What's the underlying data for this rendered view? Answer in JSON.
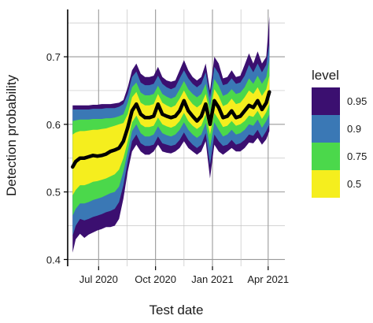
{
  "chart_data": {
    "type": "area",
    "xlabel": "Test date",
    "ylabel": "Detection probability",
    "xlim": [
      "2020-05-12",
      "2021-04-28"
    ],
    "ylim": [
      0.39,
      0.77
    ],
    "x_ticks": [
      {
        "date": "2020-07-01",
        "label": "Jul 2020"
      },
      {
        "date": "2020-10-01",
        "label": "Oct 2020"
      },
      {
        "date": "2021-01-01",
        "label": "Jan 2021"
      },
      {
        "date": "2021-04-01",
        "label": "Apr 2021"
      }
    ],
    "y_ticks": [
      0.4,
      0.5,
      0.6,
      0.7
    ],
    "x_minor_gridlines": [
      "2020-08-16",
      "2020-11-16",
      "2021-02-16"
    ],
    "y_minor_gridlines": [
      0.45,
      0.55,
      0.65,
      0.75
    ],
    "grid": true,
    "legend": {
      "title": "level",
      "position": "right",
      "items": [
        {
          "label": "0.95",
          "color": "#3b0f70"
        },
        {
          "label": "0.9",
          "color": "#3a78b5"
        },
        {
          "label": "0.75",
          "color": "#4bd84b"
        },
        {
          "label": "0.5",
          "color": "#f5ee1e"
        }
      ]
    },
    "median_color": "#000000",
    "x": [
      "2020-05-20",
      "2020-05-25",
      "2020-06-01",
      "2020-06-08",
      "2020-06-15",
      "2020-06-22",
      "2020-06-29",
      "2020-07-06",
      "2020-07-13",
      "2020-07-20",
      "2020-07-27",
      "2020-08-03",
      "2020-08-10",
      "2020-08-17",
      "2020-08-24",
      "2020-08-31",
      "2020-09-07",
      "2020-09-14",
      "2020-09-21",
      "2020-09-28",
      "2020-10-05",
      "2020-10-12",
      "2020-10-19",
      "2020-10-26",
      "2020-11-02",
      "2020-11-09",
      "2020-11-16",
      "2020-11-23",
      "2020-11-30",
      "2020-12-07",
      "2020-12-14",
      "2020-12-21",
      "2020-12-28",
      "2021-01-04",
      "2021-01-11",
      "2021-01-18",
      "2021-01-25",
      "2021-02-01",
      "2021-02-08",
      "2021-02-15",
      "2021-02-22",
      "2021-03-01",
      "2021-03-08",
      "2021-03-15",
      "2021-03-22",
      "2021-03-29",
      "2021-04-03"
    ],
    "median": [
      0.537,
      0.545,
      0.55,
      0.55,
      0.552,
      0.554,
      0.553,
      0.554,
      0.556,
      0.56,
      0.562,
      0.565,
      0.575,
      0.595,
      0.62,
      0.63,
      0.615,
      0.61,
      0.61,
      0.612,
      0.63,
      0.615,
      0.612,
      0.61,
      0.612,
      0.62,
      0.635,
      0.62,
      0.612,
      0.605,
      0.612,
      0.63,
      0.6,
      0.635,
      0.625,
      0.61,
      0.612,
      0.62,
      0.61,
      0.612,
      0.62,
      0.628,
      0.625,
      0.635,
      0.622,
      0.632,
      0.648
    ],
    "series": [
      {
        "name": "0.95",
        "lower": [
          0.41,
          0.43,
          0.438,
          0.432,
          0.437,
          0.44,
          0.443,
          0.445,
          0.448,
          0.448,
          0.45,
          0.46,
          0.49,
          0.53,
          0.56,
          0.57,
          0.56,
          0.555,
          0.555,
          0.56,
          0.57,
          0.56,
          0.558,
          0.557,
          0.56,
          0.565,
          0.575,
          0.565,
          0.56,
          0.555,
          0.56,
          0.575,
          0.52,
          0.57,
          0.56,
          0.555,
          0.56,
          0.565,
          0.56,
          0.56,
          0.565,
          0.573,
          0.572,
          0.58,
          0.57,
          0.578,
          0.59
        ],
        "upper": [
          0.628,
          0.628,
          0.628,
          0.628,
          0.628,
          0.629,
          0.629,
          0.63,
          0.63,
          0.63,
          0.631,
          0.632,
          0.636,
          0.655,
          0.68,
          0.69,
          0.675,
          0.67,
          0.67,
          0.672,
          0.685,
          0.67,
          0.665,
          0.663,
          0.665,
          0.68,
          0.695,
          0.68,
          0.67,
          0.665,
          0.67,
          0.69,
          0.65,
          0.7,
          0.69,
          0.668,
          0.67,
          0.68,
          0.67,
          0.672,
          0.688,
          0.705,
          0.69,
          0.708,
          0.69,
          0.7,
          0.76
        ]
      },
      {
        "name": "0.9",
        "lower": [
          0.435,
          0.45,
          0.46,
          0.458,
          0.46,
          0.463,
          0.465,
          0.467,
          0.47,
          0.472,
          0.475,
          0.485,
          0.51,
          0.545,
          0.575,
          0.585,
          0.572,
          0.568,
          0.568,
          0.57,
          0.582,
          0.572,
          0.57,
          0.568,
          0.57,
          0.577,
          0.588,
          0.577,
          0.57,
          0.565,
          0.57,
          0.587,
          0.54,
          0.585,
          0.575,
          0.568,
          0.57,
          0.577,
          0.57,
          0.572,
          0.577,
          0.585,
          0.583,
          0.592,
          0.58,
          0.59,
          0.6
        ],
        "upper": [
          0.622,
          0.622,
          0.622,
          0.622,
          0.622,
          0.623,
          0.623,
          0.623,
          0.624,
          0.624,
          0.624,
          0.626,
          0.63,
          0.645,
          0.67,
          0.678,
          0.662,
          0.658,
          0.658,
          0.66,
          0.672,
          0.66,
          0.655,
          0.652,
          0.655,
          0.668,
          0.68,
          0.668,
          0.66,
          0.655,
          0.66,
          0.677,
          0.64,
          0.685,
          0.675,
          0.658,
          0.66,
          0.668,
          0.66,
          0.662,
          0.672,
          0.688,
          0.677,
          0.69,
          0.677,
          0.688,
          0.72
        ]
      },
      {
        "name": "0.75",
        "lower": [
          0.465,
          0.475,
          0.483,
          0.483,
          0.485,
          0.488,
          0.49,
          0.492,
          0.495,
          0.498,
          0.5,
          0.508,
          0.53,
          0.56,
          0.59,
          0.6,
          0.587,
          0.582,
          0.582,
          0.585,
          0.597,
          0.587,
          0.584,
          0.582,
          0.585,
          0.592,
          0.603,
          0.592,
          0.585,
          0.58,
          0.585,
          0.602,
          0.565,
          0.603,
          0.592,
          0.582,
          0.585,
          0.592,
          0.585,
          0.587,
          0.592,
          0.6,
          0.598,
          0.607,
          0.595,
          0.605,
          0.615
        ],
        "upper": [
          0.605,
          0.606,
          0.607,
          0.607,
          0.607,
          0.608,
          0.608,
          0.608,
          0.609,
          0.609,
          0.61,
          0.612,
          0.615,
          0.632,
          0.655,
          0.662,
          0.647,
          0.643,
          0.643,
          0.645,
          0.657,
          0.645,
          0.641,
          0.638,
          0.641,
          0.652,
          0.664,
          0.652,
          0.645,
          0.64,
          0.645,
          0.66,
          0.627,
          0.667,
          0.657,
          0.642,
          0.645,
          0.652,
          0.645,
          0.647,
          0.655,
          0.668,
          0.66,
          0.672,
          0.66,
          0.67,
          0.695
        ]
      },
      {
        "name": "0.5",
        "lower": [
          0.495,
          0.503,
          0.51,
          0.51,
          0.512,
          0.515,
          0.516,
          0.518,
          0.52,
          0.523,
          0.526,
          0.533,
          0.55,
          0.575,
          0.603,
          0.613,
          0.6,
          0.596,
          0.596,
          0.598,
          0.61,
          0.6,
          0.597,
          0.595,
          0.598,
          0.605,
          0.617,
          0.605,
          0.598,
          0.593,
          0.598,
          0.615,
          0.585,
          0.617,
          0.607,
          0.596,
          0.598,
          0.605,
          0.598,
          0.6,
          0.605,
          0.613,
          0.611,
          0.62,
          0.608,
          0.618,
          0.63
        ],
        "upper": [
          0.585,
          0.588,
          0.59,
          0.59,
          0.591,
          0.592,
          0.592,
          0.593,
          0.594,
          0.596,
          0.598,
          0.6,
          0.602,
          0.615,
          0.64,
          0.648,
          0.632,
          0.628,
          0.628,
          0.63,
          0.645,
          0.632,
          0.628,
          0.625,
          0.628,
          0.638,
          0.65,
          0.638,
          0.63,
          0.625,
          0.63,
          0.645,
          0.615,
          0.652,
          0.642,
          0.627,
          0.63,
          0.638,
          0.63,
          0.632,
          0.64,
          0.65,
          0.645,
          0.655,
          0.642,
          0.652,
          0.672
        ]
      }
    ]
  }
}
